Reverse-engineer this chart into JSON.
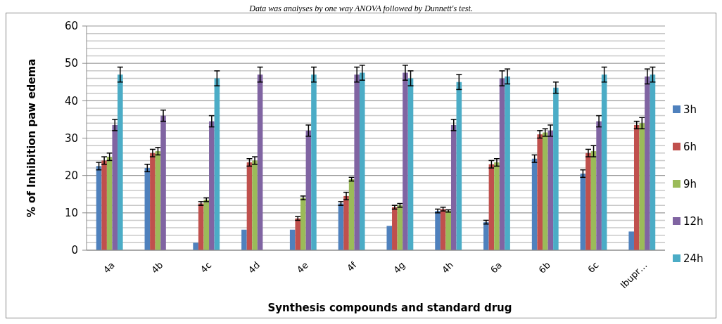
{
  "chart_data": {
    "type": "bar",
    "annotations": [
      "Data was analyses by one way ANOVA followed by Dunnett's test."
    ],
    "xlabel": "Synthesis compounds and standard drug",
    "ylabel": "% of Inhibition  paw edema",
    "categories": [
      "4a",
      "4b",
      "4c",
      "4d",
      "4e",
      "4f",
      "4g",
      "4h",
      "6a",
      "6b",
      "6c",
      "Ibupr…"
    ],
    "series": [
      {
        "name": "3h",
        "color": "#4f81bd",
        "values": [
          22.5,
          22,
          2,
          5.5,
          5.5,
          12.5,
          6.5,
          10.5,
          7.5,
          24.5,
          20.5,
          5
        ],
        "errors": [
          1,
          1,
          null,
          null,
          null,
          0.5,
          null,
          0.5,
          0.5,
          1,
          1,
          null
        ]
      },
      {
        "name": "6h",
        "color": "#c0504d",
        "values": [
          24,
          26,
          12.5,
          23.5,
          8.5,
          14.5,
          11.5,
          11,
          23,
          31,
          26,
          33.5
        ],
        "errors": [
          1,
          1,
          0.5,
          1,
          0.5,
          1,
          0.5,
          0.5,
          1,
          1,
          1,
          1
        ]
      },
      {
        "name": "9h",
        "color": "#9bbb59",
        "values": [
          25,
          26.5,
          13.5,
          24,
          14,
          19,
          12,
          10.5,
          23.5,
          31.5,
          26.5,
          34
        ],
        "errors": [
          1,
          1,
          0.5,
          1,
          0.5,
          0.5,
          0.5,
          0.3,
          1,
          1,
          1.5,
          1.5
        ]
      },
      {
        "name": "12h",
        "color": "#8064a2",
        "values": [
          33.5,
          36,
          34.5,
          47,
          32,
          47,
          47.5,
          33.5,
          46,
          32,
          34.5,
          46.5
        ],
        "errors": [
          1.5,
          1.5,
          1.5,
          2,
          1.5,
          2,
          2,
          1.5,
          2,
          1.5,
          1.5,
          2
        ]
      },
      {
        "name": "24h",
        "color": "#4bacc6",
        "values": [
          47,
          null,
          46,
          null,
          47,
          47.5,
          46,
          45,
          46.5,
          43.5,
          47,
          47
        ],
        "errors": [
          2,
          null,
          2,
          null,
          2,
          2,
          2,
          2,
          2,
          1.5,
          2,
          2
        ]
      }
    ],
    "ylim": [
      0,
      60
    ],
    "yticks": [
      0,
      {
        "value": 2,
        "label": null
      },
      {
        "value": 4,
        "label": null
      },
      {
        "value": 6,
        "label": null
      },
      {
        "value": 8,
        "label": null
      },
      10,
      {
        "value": 12,
        "label": null
      },
      {
        "value": 14,
        "label": null
      },
      {
        "value": 16,
        "label": null
      },
      {
        "value": 18,
        "label": null
      },
      20,
      {
        "value": 22,
        "label": null
      },
      {
        "value": 24,
        "label": null
      },
      {
        "value": 26,
        "label": null
      },
      {
        "value": 28,
        "label": null
      },
      30,
      {
        "value": 32,
        "label": null
      },
      {
        "value": 34,
        "label": null
      },
      {
        "value": 36,
        "label": null
      },
      {
        "value": 38,
        "label": null
      },
      40,
      {
        "value": 42,
        "label": null
      },
      {
        "value": 44,
        "label": null
      },
      {
        "value": 46,
        "label": null
      },
      {
        "value": 48,
        "label": null
      },
      50,
      {
        "value": 52,
        "label": null
      },
      {
        "value": 54,
        "label": null
      },
      {
        "value": 56,
        "label": null
      },
      {
        "value": 58,
        "label": null
      },
      60
    ],
    "grid": true,
    "legend": "right"
  }
}
